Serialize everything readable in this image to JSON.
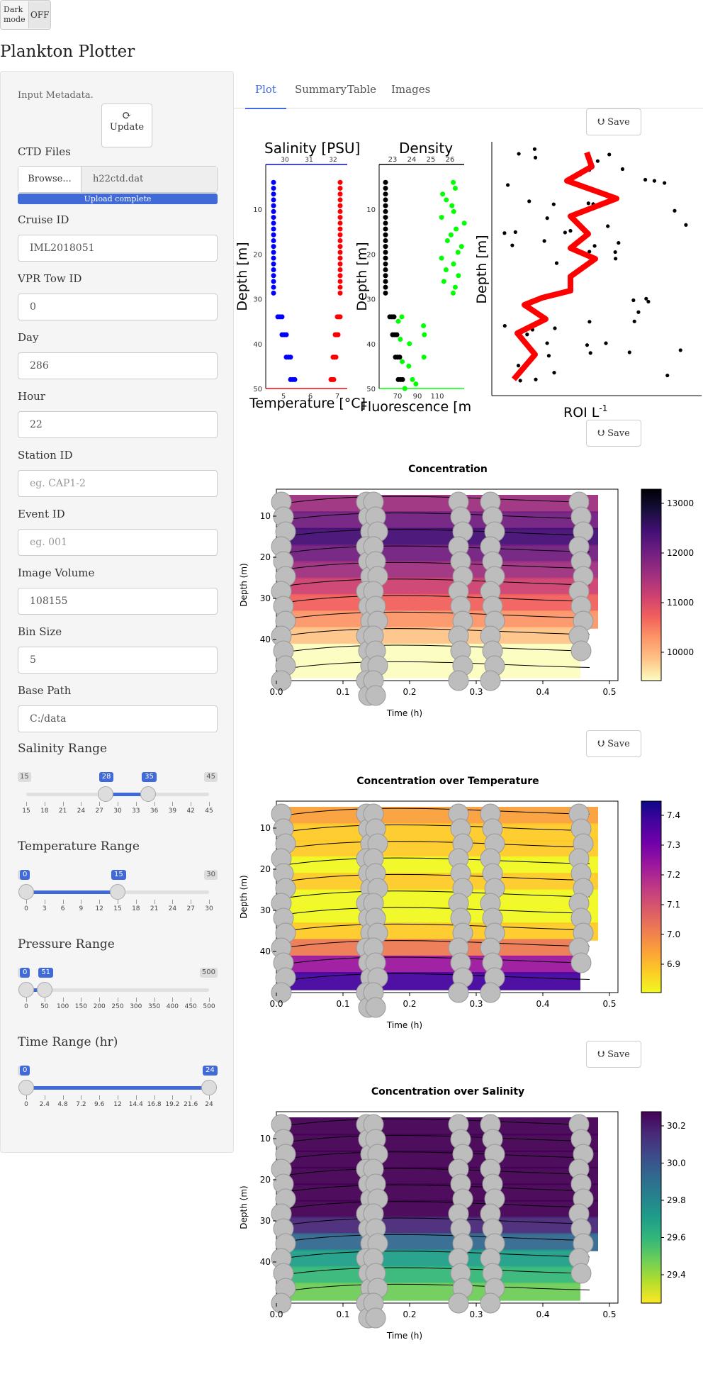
{
  "dark_mode": {
    "label": "Dark mode",
    "value": "OFF"
  },
  "app_title": "Plankton Plotter",
  "sidebar": {
    "metadata_label": "Input Metadata.",
    "update_button": "Update",
    "ctd_files_label": "CTD Files",
    "browse_button": "Browse...",
    "file_name": "h22ctd.dat",
    "upload_status": "Upload complete",
    "fields": [
      {
        "label": "Cruise ID",
        "value": "IML2018051",
        "placeholder": ""
      },
      {
        "label": "VPR Tow ID",
        "value": "0",
        "placeholder": ""
      },
      {
        "label": "Day",
        "value": "286",
        "placeholder": ""
      },
      {
        "label": "Hour",
        "value": "22",
        "placeholder": ""
      },
      {
        "label": "Station ID",
        "value": "",
        "placeholder": "eg. CAP1-2"
      },
      {
        "label": "Event ID",
        "value": "",
        "placeholder": "eg. 001"
      },
      {
        "label": "Image Volume",
        "value": "108155",
        "placeholder": ""
      },
      {
        "label": "Bin Size",
        "value": "5",
        "placeholder": ""
      },
      {
        "label": "Base Path",
        "value": "C:/data",
        "placeholder": ""
      }
    ],
    "sliders": [
      {
        "label": "Salinity Range",
        "min": "15",
        "max": "45",
        "from": "28",
        "to": "35",
        "ticks": [
          "15",
          "18",
          "21",
          "24",
          "27",
          "30",
          "33",
          "36",
          "39",
          "42",
          "45"
        ],
        "from_frac": 0.433,
        "to_frac": 0.667
      },
      {
        "label": "Temperature Range",
        "min": "0",
        "max": "30",
        "from": "0",
        "to": "15",
        "ticks": [
          "0",
          "3",
          "6",
          "9",
          "12",
          "15",
          "18",
          "21",
          "24",
          "27",
          "30"
        ],
        "from_frac": 0,
        "to_frac": 0.5
      },
      {
        "label": "Pressure Range",
        "min": "0",
        "max": "500",
        "from": "0",
        "to": "51",
        "ticks": [
          "0",
          "50",
          "100",
          "150",
          "200",
          "250",
          "300",
          "350",
          "400",
          "450",
          "500"
        ],
        "from_frac": 0,
        "to_frac": 0.102
      },
      {
        "label": "Time Range (hr)",
        "min": "0",
        "max": "24",
        "from": "0",
        "to": "24",
        "ticks": [
          "0",
          "2.4",
          "4.8",
          "7.2",
          "9.6",
          "12",
          "14.4",
          "16.8",
          "19.2",
          "21.6",
          "24"
        ],
        "from_frac": 0,
        "to_frac": 1
      }
    ]
  },
  "tabs": [
    "Plot",
    "Summary",
    "Table",
    "Images"
  ],
  "save_label": "Save",
  "colors": {
    "accent": "#3f6ad8",
    "salinity": "#0000ff",
    "temperature": "#ff0000",
    "density": "#000000",
    "fluorescence": "#00ff00",
    "roi_line": "#ff0000"
  },
  "profile_plot": {
    "salinity_title": "Salinity [PSU]",
    "density_title": "Density",
    "temperature_label": "Temperature [°C]",
    "fluorescence_label": "Fluorescence [m",
    "depth_label": "Depth [m]",
    "salinity_ticks": [
      "30",
      "31",
      "32"
    ],
    "temperature_ticks": [
      "5",
      "6",
      "7"
    ],
    "density_ticks": [
      "23",
      "24",
      "25",
      "26"
    ],
    "fluorescence_ticks": [
      "70",
      "90",
      "110"
    ],
    "depth_ticks": [
      "10",
      "20",
      "30",
      "40",
      "50"
    ],
    "roi_label": "ROI L",
    "roi_superscript": "-1"
  },
  "contour_plots": [
    {
      "title": "Concentration",
      "colorbar_ticks": [
        "13000",
        "12000",
        "11000",
        "10000"
      ],
      "palette": "magma"
    },
    {
      "title": "Concentration over Temperature",
      "colorbar_ticks": [
        "7.4",
        "7.3",
        "7.2",
        "7.1",
        "7.0",
        "6.9"
      ],
      "palette": "plasma"
    },
    {
      "title": "Concentration over Salinity",
      "colorbar_ticks": [
        "30.2",
        "30.0",
        "29.8",
        "29.6",
        "29.4"
      ],
      "palette": "viridis"
    }
  ],
  "contour_axes": {
    "xlabel": "Time (h)",
    "ylabel": "Depth (m)",
    "xticks": [
      "0.0",
      "0.1",
      "0.2",
      "0.3",
      "0.4",
      "0.5"
    ],
    "yticks": [
      "10",
      "20",
      "30",
      "40"
    ]
  }
}
